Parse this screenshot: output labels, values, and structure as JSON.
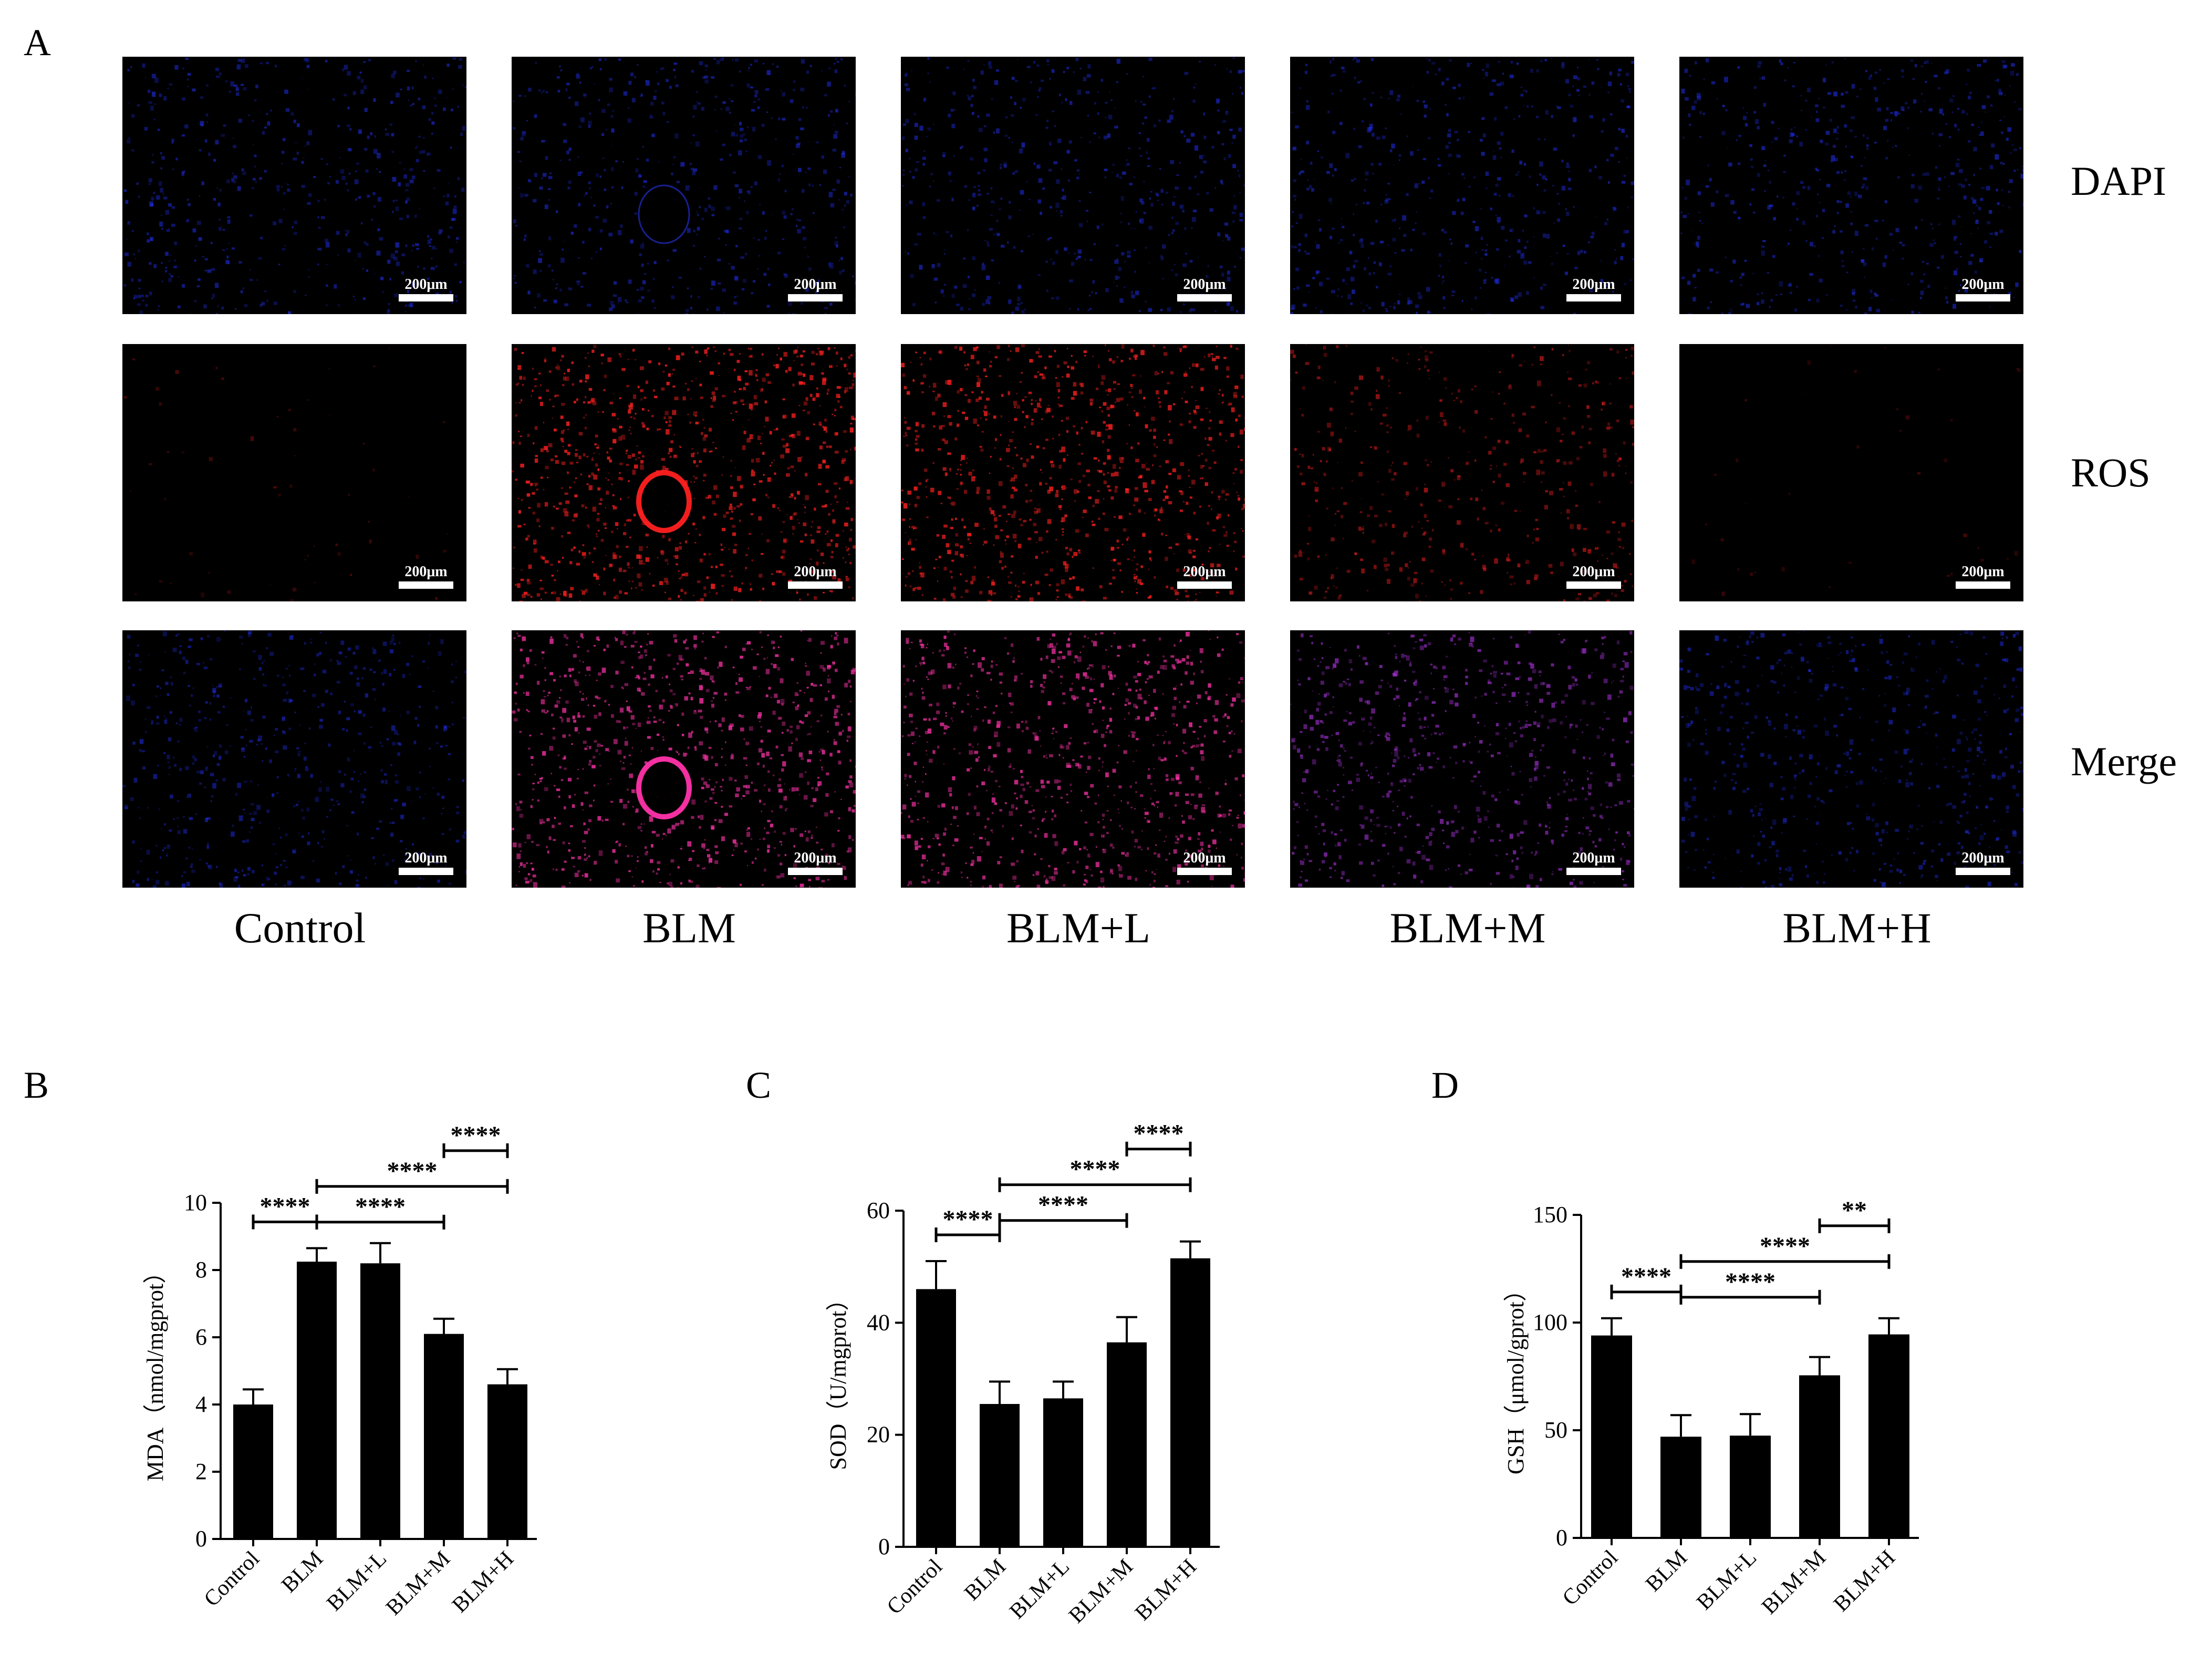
{
  "figure": {
    "panel_a": {
      "letter": "A",
      "rows": [
        "DAPI",
        "ROS",
        "Merge"
      ],
      "columns": [
        "Control",
        "BLM",
        "BLM+L",
        "BLM+M",
        "BLM+H"
      ],
      "scale_bar": "200μm",
      "colors": {
        "dapi": "#2233ff",
        "ros": "#ff2020",
        "merge": "#ff33aa",
        "merge_medium": "#aa33dd"
      },
      "ros_intensity": [
        0.05,
        1.0,
        0.95,
        0.5,
        0.03
      ]
    },
    "panel_b": {
      "letter": "B"
    },
    "panel_c": {
      "letter": "C"
    },
    "panel_d": {
      "letter": "D"
    }
  },
  "chart_data": [
    {
      "type": "bar",
      "panel": "B",
      "categories": [
        "Control",
        "BLM",
        "BLM+L",
        "BLM+M",
        "BLM+H"
      ],
      "values": [
        4.0,
        8.25,
        8.2,
        6.1,
        4.6
      ],
      "errors": [
        0.45,
        0.4,
        0.6,
        0.45,
        0.45
      ],
      "ylabel": "MDA（nmol/mgprot）",
      "ylim": [
        0,
        10
      ],
      "yticks": [
        0,
        2,
        4,
        6,
        8,
        10
      ],
      "significance": [
        {
          "from": 0,
          "to": 1,
          "label": "****"
        },
        {
          "from": 1,
          "to": 3,
          "label": "****"
        },
        {
          "from": 1,
          "to": 4,
          "label": "****"
        },
        {
          "from": 3,
          "to": 4,
          "label": "****"
        }
      ]
    },
    {
      "type": "bar",
      "panel": "C",
      "categories": [
        "Control",
        "BLM",
        "BLM+L",
        "BLM+M",
        "BLM+H"
      ],
      "values": [
        46,
        25.5,
        26.5,
        36.5,
        51.5
      ],
      "errors": [
        5,
        4,
        3,
        4.5,
        3
      ],
      "ylabel": "SOD（U/mgprot）",
      "ylim": [
        0,
        60
      ],
      "yticks": [
        0,
        20,
        40,
        60
      ],
      "significance": [
        {
          "from": 0,
          "to": 1,
          "label": "****"
        },
        {
          "from": 1,
          "to": 3,
          "label": "****"
        },
        {
          "from": 1,
          "to": 4,
          "label": "****"
        },
        {
          "from": 3,
          "to": 4,
          "label": "****"
        }
      ]
    },
    {
      "type": "bar",
      "panel": "D",
      "categories": [
        "Control",
        "BLM",
        "BLM+L",
        "BLM+M",
        "BLM+H"
      ],
      "values": [
        94,
        47,
        47.5,
        75.5,
        94.5
      ],
      "errors": [
        8,
        10,
        10,
        8.5,
        7.5
      ],
      "ylabel": "GSH（μmol/gprot）",
      "ylim": [
        0,
        150
      ],
      "yticks": [
        0,
        50,
        100,
        150
      ],
      "significance": [
        {
          "from": 0,
          "to": 1,
          "label": "****"
        },
        {
          "from": 1,
          "to": 3,
          "label": "****"
        },
        {
          "from": 1,
          "to": 4,
          "label": "****"
        },
        {
          "from": 3,
          "to": 4,
          "label": "**"
        }
      ]
    }
  ]
}
